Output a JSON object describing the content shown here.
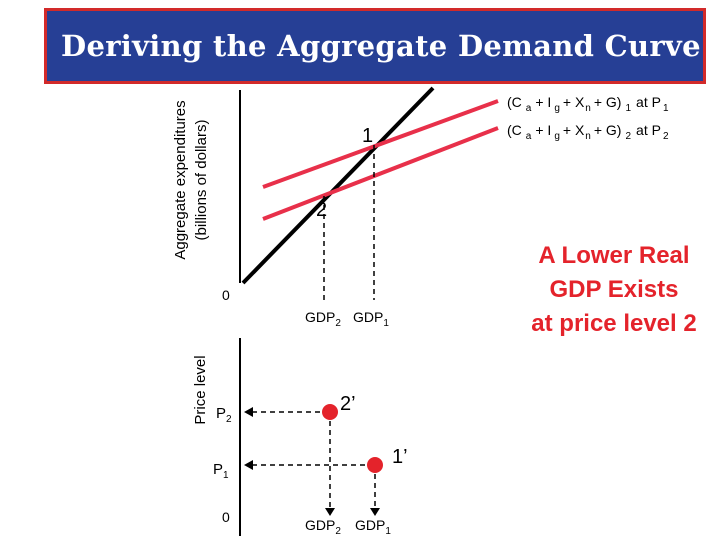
{
  "title": "Deriving the Aggregate Demand Curve",
  "upper_graph": {
    "y_label_line1": "Aggregate expenditures",
    "y_label_line2": "(billions of dollars)",
    "origin": "0",
    "point1": "1",
    "point2": "2",
    "gdp2": "GDP",
    "gdp2_sub": "2",
    "gdp1": "GDP",
    "gdp1_sub": "1",
    "line1": {
      "pre": "(C",
      "s1": "a",
      "m1": "+ I",
      "s2": "g",
      "m2": "+ X",
      "s3": "n",
      "m3": "+ G)",
      "s4": "1",
      "tail": "at P",
      "s5": "1"
    },
    "line2": {
      "pre": "(C",
      "s1": "a",
      "m1": "+ I",
      "s2": "g",
      "m2": "+ X",
      "s3": "n",
      "m3": "+ G)",
      "s4": "2",
      "tail": "at P",
      "s5": "2"
    },
    "colors": {
      "expenditure_lines": "#e8304a",
      "forty_five_line": "#000000"
    }
  },
  "lower_graph": {
    "y_label": "Price level",
    "origin": "0",
    "p2": "P",
    "p2_sub": "2",
    "p1": "P",
    "p1_sub": "1",
    "point2": "2’",
    "point1": "1’",
    "gdp2": "GDP",
    "gdp2_sub": "2",
    "gdp1": "GDP",
    "gdp1_sub": "1",
    "colors": {
      "points": "#e4232b"
    }
  },
  "callout": {
    "line1": "A Lower Real",
    "line2": "GDP Exists",
    "line3": "at price level 2",
    "color": "#e4232b"
  }
}
